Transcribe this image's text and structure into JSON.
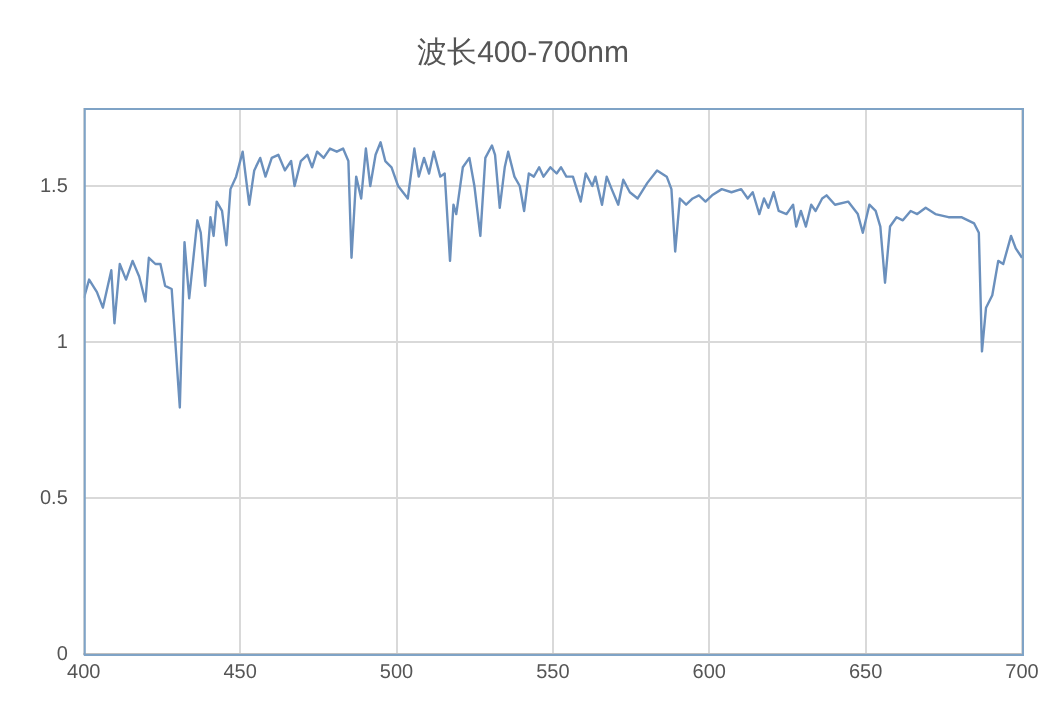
{
  "chart_data": {
    "type": "line",
    "title": "波长400-700nm",
    "grid": true,
    "legend": false,
    "marker": "none",
    "line_style": "solid",
    "xlim": [
      400,
      700
    ],
    "xticks": [
      400,
      450,
      500,
      550,
      600,
      650,
      700
    ],
    "ylim": [
      0,
      1.75
    ],
    "yticks": [
      0,
      0.5,
      1,
      1.5
    ],
    "x": [
      400,
      401.7,
      404.2,
      406.1,
      408.8,
      409.8,
      411.5,
      413.5,
      415.6,
      417.7,
      419.7,
      420.8,
      422.9,
      424.5,
      426,
      428.1,
      430.7,
      432.2,
      433.7,
      436.3,
      437.4,
      438.8,
      440.5,
      441.5,
      442.5,
      444.2,
      445.6,
      446.9,
      448.7,
      450.8,
      452.9,
      454.5,
      456.4,
      458.1,
      460.1,
      462.2,
      464.3,
      466.3,
      467.4,
      469.4,
      471.5,
      473,
      474.6,
      476.7,
      478.7,
      480.9,
      482.9,
      484.6,
      485.6,
      487.1,
      488.7,
      490.2,
      491.6,
      493.3,
      494.9,
      496.4,
      498.4,
      500.5,
      503.6,
      505.7,
      507.1,
      508.8,
      510.4,
      511.9,
      514,
      515.4,
      517.1,
      518.2,
      519.1,
      521.2,
      523.3,
      524.9,
      526.8,
      528.4,
      530.5,
      531.5,
      533,
      534.6,
      535.7,
      537.7,
      539.4,
      540.8,
      542.3,
      543.9,
      545.6,
      547,
      549.2,
      551.2,
      552.6,
      554.3,
      556.4,
      558.9,
      560.5,
      562.6,
      563.6,
      565.7,
      567.2,
      568.8,
      570.9,
      572.5,
      574.6,
      577.1,
      580.2,
      583.3,
      586.4,
      587.9,
      589.1,
      590.6,
      592.6,
      594.7,
      596.7,
      598.8,
      600.9,
      604,
      607.1,
      610.2,
      612.3,
      613.9,
      616,
      617.5,
      618.9,
      620.6,
      622.2,
      624.7,
      626.8,
      627.8,
      629.3,
      630.9,
      632.6,
      634,
      636.1,
      637.5,
      640.2,
      644.4,
      647.5,
      649.1,
      651.2,
      653.2,
      654.7,
      656.2,
      657.8,
      659.9,
      661.9,
      664.4,
      666.5,
      669.2,
      672.3,
      676.5,
      680.6,
      684.7,
      686.2,
      687.2,
      688.5,
      690.5,
      692.4,
      694,
      696.5,
      698,
      700
    ],
    "series": [
      {
        "color": "#6b90bd",
        "values": [
          1.14,
          1.2,
          1.16,
          1.11,
          1.23,
          1.06,
          1.25,
          1.2,
          1.26,
          1.21,
          1.13,
          1.27,
          1.25,
          1.25,
          1.18,
          1.17,
          0.79,
          1.32,
          1.14,
          1.39,
          1.35,
          1.18,
          1.4,
          1.34,
          1.45,
          1.42,
          1.31,
          1.49,
          1.53,
          1.61,
          1.44,
          1.55,
          1.59,
          1.53,
          1.59,
          1.6,
          1.55,
          1.58,
          1.5,
          1.58,
          1.6,
          1.56,
          1.61,
          1.59,
          1.62,
          1.61,
          1.62,
          1.58,
          1.27,
          1.53,
          1.46,
          1.62,
          1.5,
          1.6,
          1.64,
          1.58,
          1.56,
          1.5,
          1.46,
          1.62,
          1.53,
          1.59,
          1.54,
          1.61,
          1.53,
          1.54,
          1.26,
          1.44,
          1.41,
          1.56,
          1.59,
          1.5,
          1.34,
          1.59,
          1.63,
          1.6,
          1.43,
          1.56,
          1.61,
          1.53,
          1.5,
          1.42,
          1.54,
          1.53,
          1.56,
          1.53,
          1.56,
          1.54,
          1.56,
          1.53,
          1.53,
          1.45,
          1.54,
          1.5,
          1.53,
          1.44,
          1.53,
          1.49,
          1.44,
          1.52,
          1.48,
          1.46,
          1.51,
          1.55,
          1.53,
          1.49,
          1.29,
          1.46,
          1.44,
          1.46,
          1.47,
          1.45,
          1.47,
          1.49,
          1.48,
          1.49,
          1.46,
          1.48,
          1.41,
          1.46,
          1.43,
          1.48,
          1.42,
          1.41,
          1.44,
          1.37,
          1.42,
          1.37,
          1.44,
          1.42,
          1.46,
          1.47,
          1.44,
          1.45,
          1.41,
          1.35,
          1.44,
          1.42,
          1.37,
          1.19,
          1.37,
          1.4,
          1.39,
          1.42,
          1.41,
          1.43,
          1.41,
          1.4,
          1.4,
          1.38,
          1.35,
          0.97,
          1.11,
          1.15,
          1.26,
          1.25,
          1.34,
          1.3,
          1.27
        ]
      }
    ]
  }
}
